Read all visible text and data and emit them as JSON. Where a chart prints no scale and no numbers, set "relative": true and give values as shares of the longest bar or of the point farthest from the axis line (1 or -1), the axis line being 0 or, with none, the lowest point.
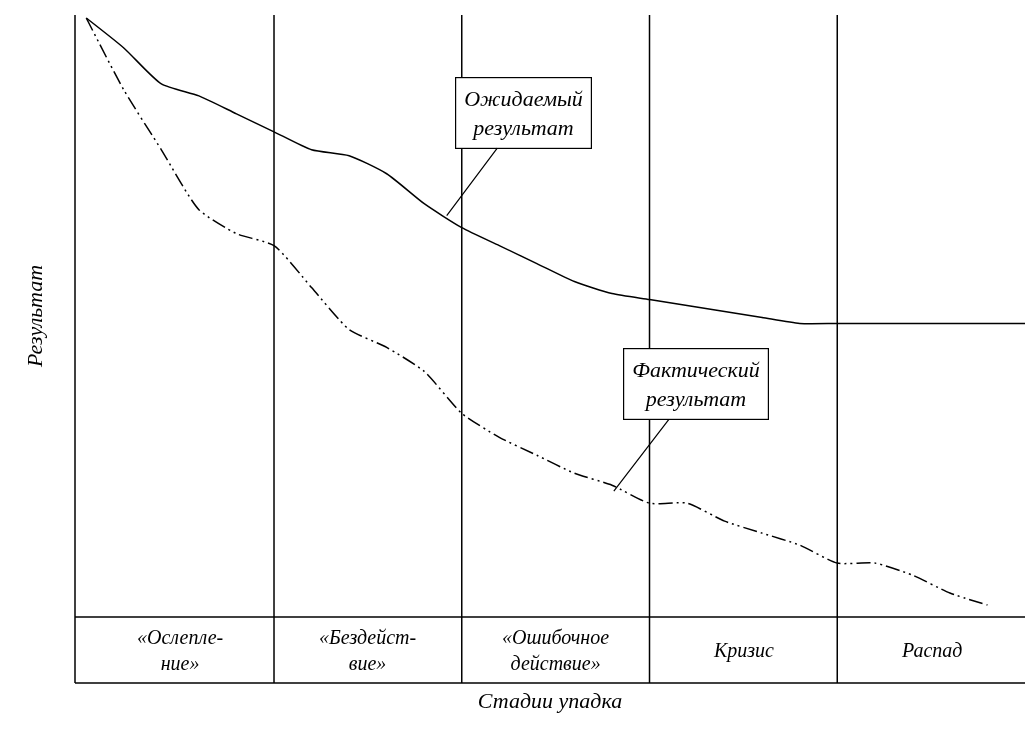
{
  "chart_data": {
    "type": "line",
    "relative": true,
    "xlabel": "Стадии упадка",
    "ylabel": "Результат",
    "grid": "x",
    "categories": [
      null,
      null,
      null,
      null,
      null,
      null,
      null,
      null,
      null,
      null,
      null,
      null,
      null,
      null,
      null,
      null,
      null,
      null,
      null,
      null,
      null,
      null,
      null,
      null,
      null,
      null
    ],
    "series": [
      {
        "color": "#000000",
        "line_style": "solid",
        "values": [
          1.0,
          0.95,
          0.89,
          0.87,
          0.84,
          0.81,
          0.78,
          0.77,
          0.74,
          0.69,
          0.65,
          0.62,
          0.59,
          0.56,
          0.54,
          0.53,
          0.52,
          0.51,
          0.5,
          0.49,
          0.49,
          0.49,
          0.49,
          0.49,
          0.49,
          0.49
        ]
      },
      {
        "color": "#000000",
        "line_style": "dashed",
        "values": [
          1.0,
          0.88,
          0.78,
          0.68,
          0.64,
          0.62,
          0.55,
          0.48,
          0.45,
          0.41,
          0.34,
          0.3,
          0.27,
          0.24,
          0.22,
          0.19,
          0.19,
          0.16,
          0.14,
          0.12,
          0.09,
          0.09,
          0.07,
          0.04,
          0.02,
          null
        ]
      }
    ],
    "annotations": [
      "«Ослепле-\nние»",
      "«Бездейст-\nвие»",
      "«Ошибочное\nдействие»",
      "Кризис",
      "Распад",
      "Ожидаемый\nрезультат",
      "Фактический\nрезультат"
    ]
  }
}
